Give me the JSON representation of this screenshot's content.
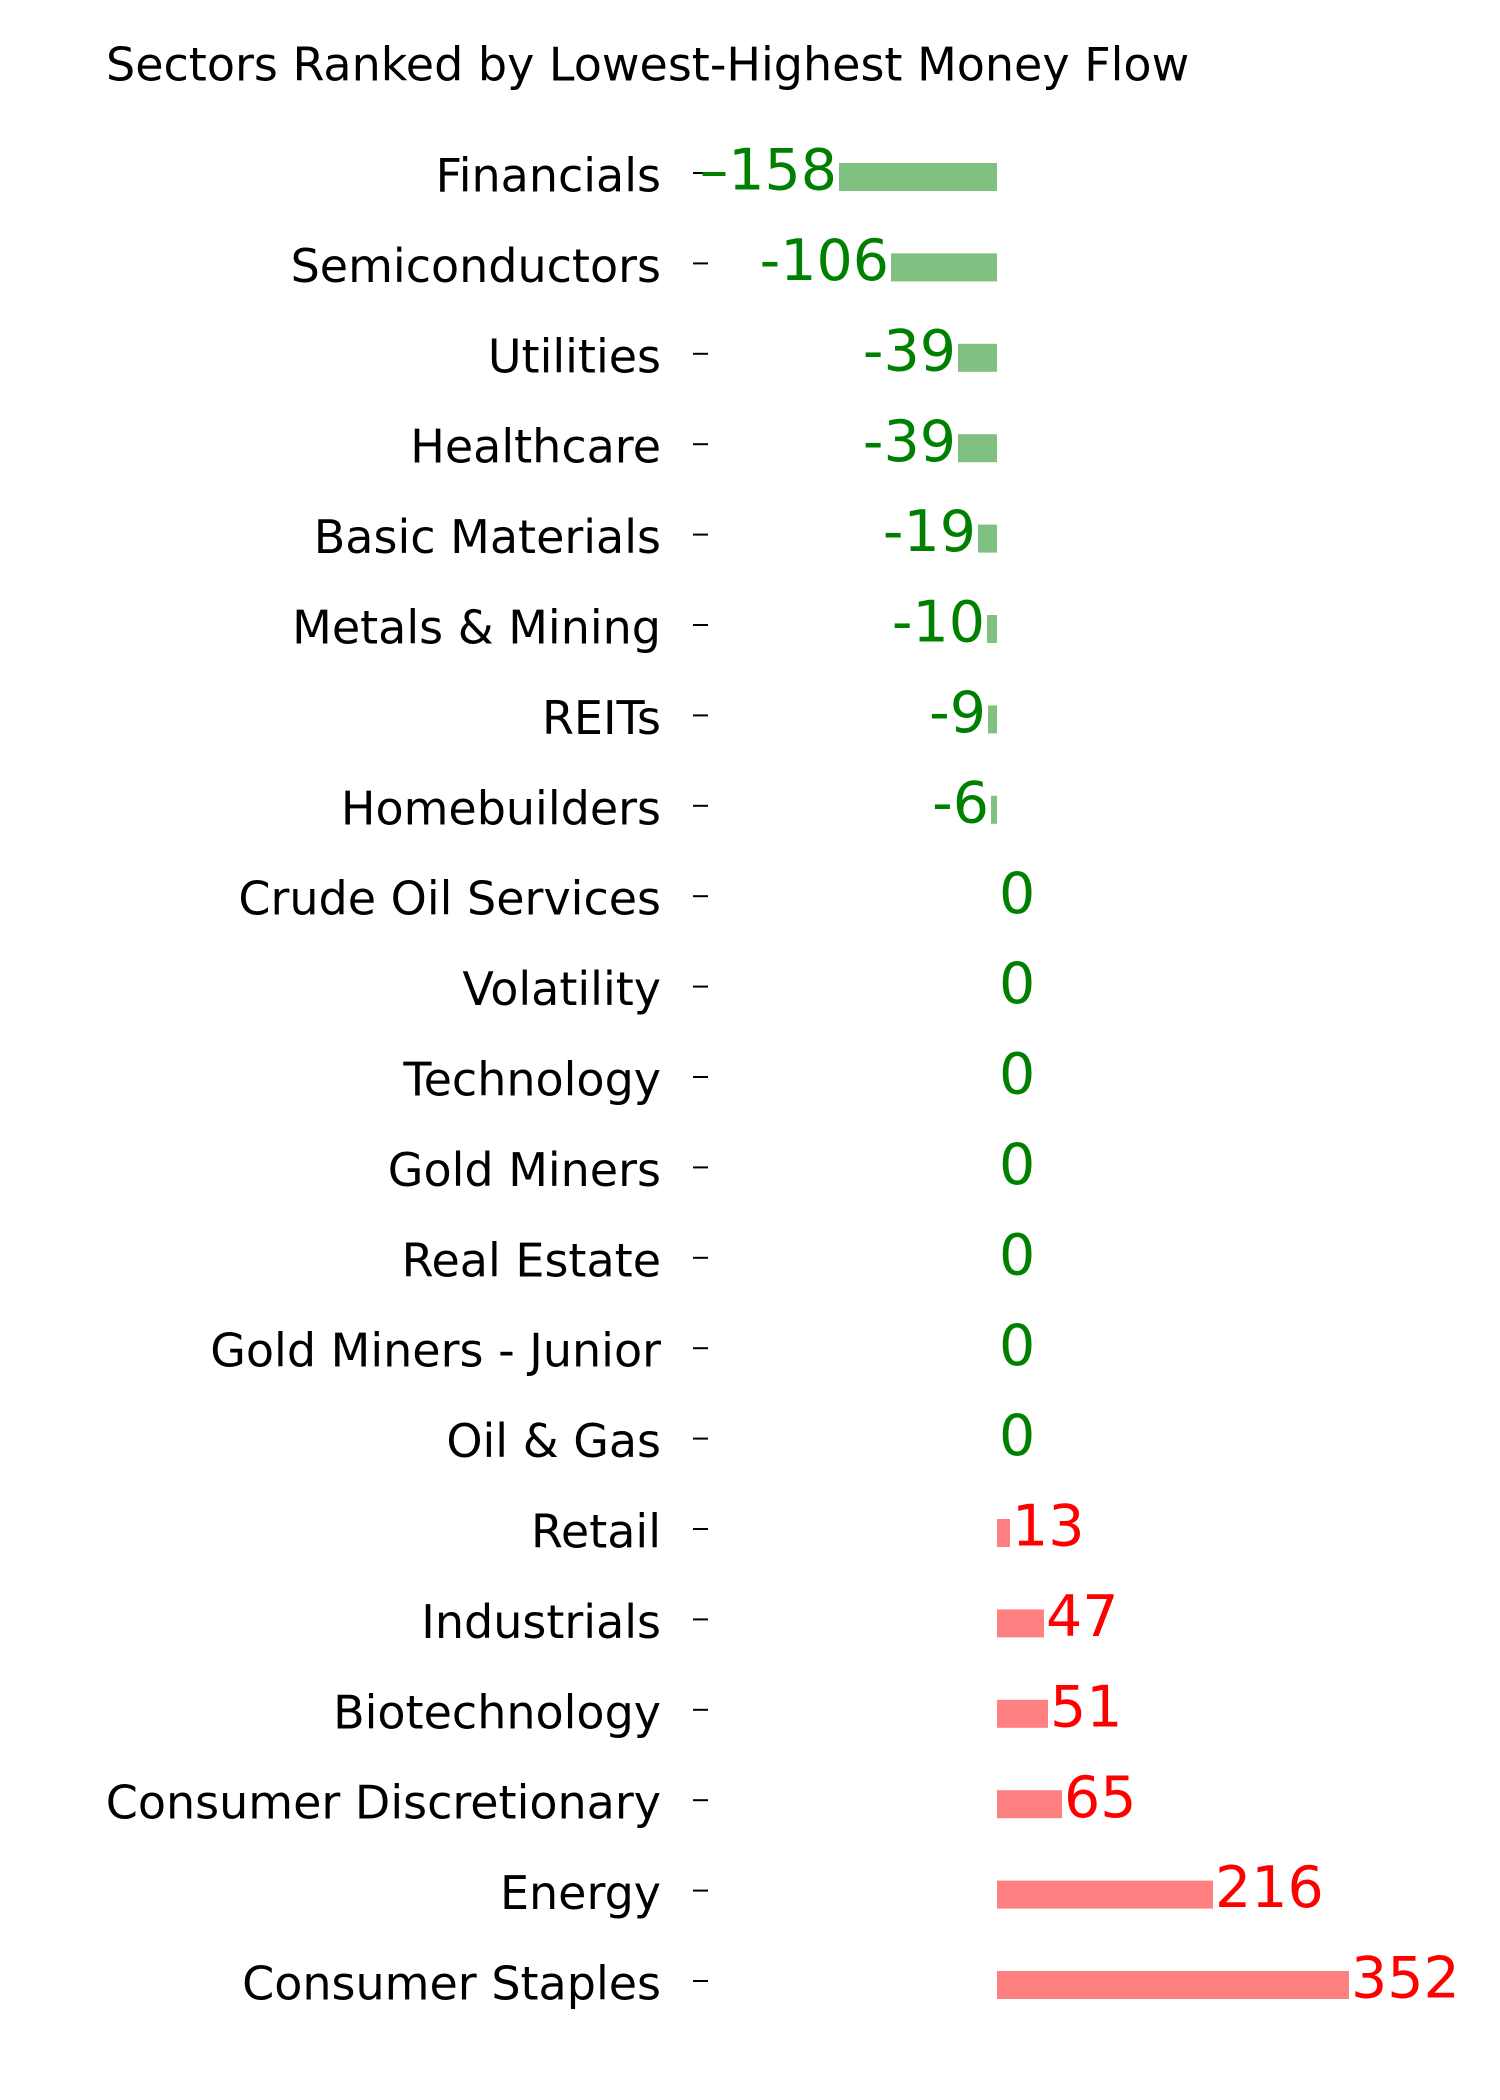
{
  "chart_data": {
    "type": "barh",
    "title": "Sectors Ranked by Lowest-Highest Money Flow",
    "categories": [
      "Financials",
      "Semiconductors",
      "Utilities",
      "Healthcare",
      "Basic Materials",
      "Metals & Mining",
      "REITs",
      "Homebuilders",
      "Crude Oil Services",
      "Volatility",
      "Technology",
      "Gold Miners",
      "Real Estate",
      "Gold Miners - Junior",
      "Oil & Gas",
      "Retail",
      "Industrials",
      "Biotechnology",
      "Consumer Discretionary",
      "Energy",
      "Consumer Staples"
    ],
    "values": [
      -158,
      -106,
      -39,
      -39,
      -19,
      -10,
      -9,
      -6,
      0,
      0,
      0,
      0,
      0,
      0,
      0,
      13,
      47,
      51,
      65,
      216,
      352
    ],
    "value_labels": [
      "–158",
      "-106",
      "-39",
      "-39",
      "-19",
      "-10",
      "-9",
      "-6",
      "0",
      "0",
      "0",
      "0",
      "0",
      "0",
      "0",
      "13",
      "47",
      "51",
      "65",
      "216",
      "352"
    ],
    "colors": {
      "negative_bar": "#80c080",
      "negative_text": "#008000",
      "positive_bar": "#ff8080",
      "positive_text": "#ff0000"
    }
  }
}
